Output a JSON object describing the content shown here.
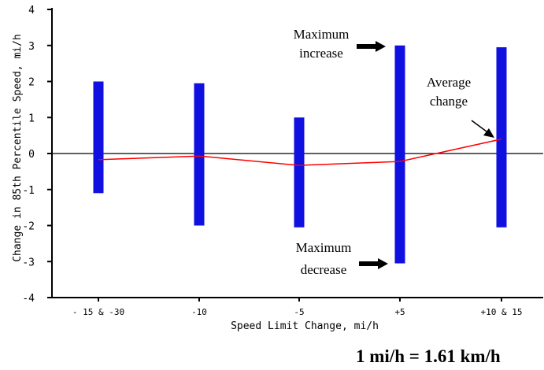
{
  "chart_data": {
    "type": "bar",
    "xlabel": "Speed Limit Change, mi/h",
    "ylabel": "Change in 85th Percentile Speed, mi/h",
    "ylim": [
      -4,
      4
    ],
    "yticks": [
      "-4",
      "-3",
      "-2",
      "-1",
      "0",
      "1",
      "2",
      "3",
      "4"
    ],
    "categories": [
      "- 15 & -30",
      "-10",
      "-5",
      "+5",
      "+10 & 15"
    ],
    "range_bars": {
      "color": "#1010e0",
      "max": [
        2.0,
        1.95,
        1.0,
        3.0,
        2.95
      ],
      "min": [
        -1.1,
        -2.0,
        -2.05,
        -3.05,
        -2.05
      ]
    },
    "average_line": {
      "color": "#ff0000",
      "values": [
        -0.17,
        -0.07,
        -0.33,
        -0.22,
        0.4
      ]
    },
    "annotations": {
      "max_increase": [
        "Maximum",
        "increase"
      ],
      "average_change": [
        "Average",
        "change"
      ],
      "max_decrease": [
        "Maximum",
        "decrease"
      ]
    },
    "grid": false
  },
  "footnote": "1 mi/h = 1.61 km/h"
}
